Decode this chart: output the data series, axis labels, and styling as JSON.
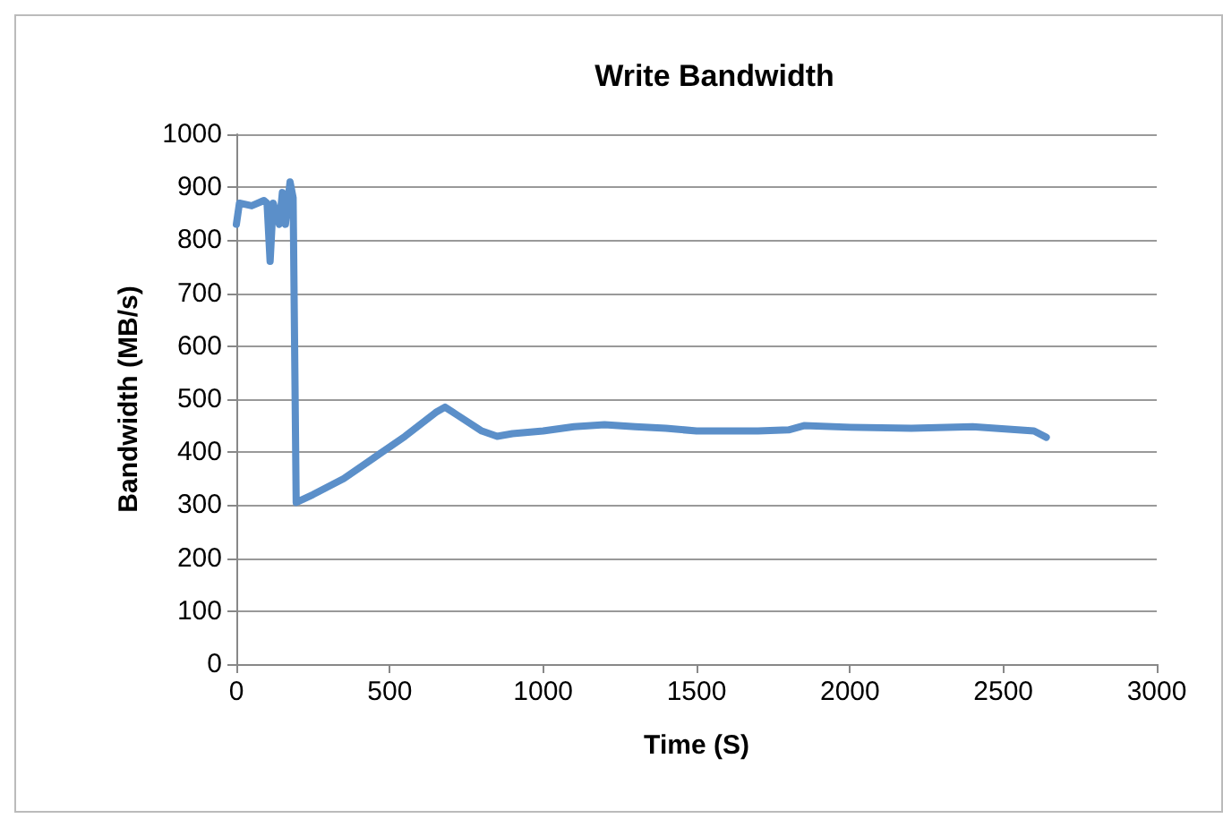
{
  "chart_data": {
    "type": "line",
    "title": "Write Bandwidth",
    "xlabel": "Time (S)",
    "ylabel": "Bandwidth (MB/s)",
    "xlim": [
      0,
      3000
    ],
    "xticks": [
      0,
      500,
      1000,
      1500,
      2000,
      2500,
      3000
    ],
    "ylim": [
      0,
      1000
    ],
    "yticks": [
      0,
      100,
      200,
      300,
      400,
      500,
      600,
      700,
      800,
      900,
      1000
    ],
    "grid": "y",
    "marker": "none",
    "line_style": "solid",
    "series": [
      {
        "color": "#5b8fc9",
        "x": [
          0,
          10,
          50,
          90,
          100,
          110,
          120,
          140,
          150,
          160,
          175,
          185,
          195,
          250,
          350,
          450,
          550,
          650,
          680,
          720,
          800,
          850,
          900,
          1000,
          1100,
          1200,
          1300,
          1400,
          1500,
          1700,
          1800,
          1850,
          2000,
          2200,
          2400,
          2600,
          2640
        ],
        "values": [
          830,
          870,
          865,
          875,
          870,
          760,
          870,
          830,
          890,
          830,
          910,
          880,
          305,
          320,
          350,
          390,
          430,
          475,
          485,
          470,
          440,
          430,
          435,
          440,
          448,
          452,
          448,
          445,
          440,
          440,
          442,
          450,
          447,
          445,
          448,
          440,
          428
        ]
      }
    ]
  }
}
